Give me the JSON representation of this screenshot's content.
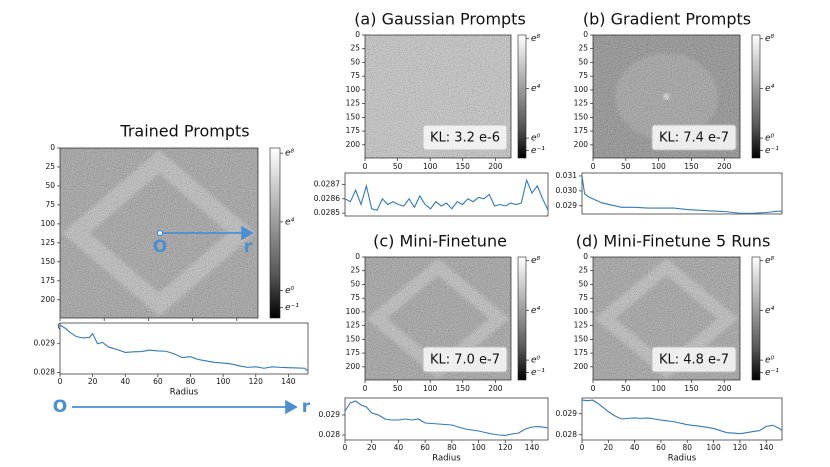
{
  "chart_data": [
    {
      "type": "image",
      "title": "Trained Prompts",
      "cmap": "gray",
      "xlim": [
        0,
        224
      ],
      "ylim": [
        0,
        224
      ],
      "yaxis_inverted": true,
      "xticks": [
        0,
        50,
        100,
        150,
        200
      ],
      "yticks": [
        0,
        25,
        50,
        75,
        100,
        125,
        150,
        175,
        200
      ],
      "colorbar": {
        "lim": [
          -1.6,
          8.3
        ],
        "ticks": [
          {
            "value": 8,
            "label": "e⁸"
          },
          {
            "value": 4,
            "label": "e⁴"
          },
          {
            "value": 0,
            "label": "e⁰"
          },
          {
            "value": -1,
            "label": "e⁻¹"
          }
        ]
      },
      "annotations": [
        "O",
        "r"
      ]
    },
    {
      "type": "line",
      "color": "#2f7ab9",
      "xlabel": "Radius",
      "xlim": [
        0,
        152
      ],
      "ylim": [
        0.02795,
        0.02972
      ],
      "xticks": [
        0,
        20,
        40,
        60,
        80,
        100,
        120,
        140
      ],
      "yticks": [
        0.028,
        0.029
      ],
      "x": [
        0,
        3,
        6,
        10,
        14,
        18,
        20,
        23,
        26,
        30,
        35,
        40,
        45,
        50,
        55,
        60,
        65,
        70,
        75,
        80,
        85,
        90,
        95,
        100,
        105,
        110,
        115,
        120,
        125,
        130,
        135,
        140,
        145,
        150,
        152
      ],
      "values": [
        0.02965,
        0.02955,
        0.0294,
        0.02925,
        0.0292,
        0.02922,
        0.02935,
        0.029,
        0.02905,
        0.02888,
        0.0288,
        0.0287,
        0.02872,
        0.02873,
        0.02878,
        0.02875,
        0.02874,
        0.02865,
        0.02852,
        0.02855,
        0.02845,
        0.0284,
        0.02835,
        0.02833,
        0.0283,
        0.02823,
        0.02818,
        0.0282,
        0.02815,
        0.0282,
        0.02818,
        0.02817,
        0.02816,
        0.02815,
        0.02805
      ],
      "annotations": [
        "O",
        "r"
      ]
    },
    {
      "type": "image",
      "title": "(a) Gaussian Prompts",
      "annotation": "KL: 3.2 e-6",
      "cmap": "gray",
      "xlim": [
        0,
        224
      ],
      "ylim": [
        0,
        224
      ],
      "yaxis_inverted": true,
      "xticks": [
        0,
        50,
        100,
        150,
        200
      ],
      "yticks": [
        0,
        25,
        50,
        75,
        100,
        125,
        150,
        175,
        200
      ],
      "colorbar": {
        "lim": [
          -1.6,
          8.3
        ],
        "ticks": [
          {
            "value": 8,
            "label": "e⁸"
          },
          {
            "value": 4,
            "label": "e⁴"
          },
          {
            "value": 0,
            "label": "e⁰"
          },
          {
            "value": -1,
            "label": "e⁻¹"
          }
        ]
      }
    },
    {
      "type": "line",
      "color": "#2f7ab9",
      "xlim": [
        0,
        152
      ],
      "ylim": [
        0.02848,
        0.02878
      ],
      "yticks": [
        0.0285,
        0.0286,
        0.0287
      ],
      "x": [
        0,
        4,
        8,
        12,
        16,
        20,
        24,
        28,
        32,
        36,
        40,
        44,
        48,
        52,
        56,
        60,
        64,
        68,
        72,
        76,
        80,
        84,
        88,
        92,
        96,
        100,
        104,
        108,
        112,
        116,
        120,
        124,
        128,
        132,
        136,
        140,
        144,
        148,
        152
      ],
      "values": [
        0.0286,
        0.02858,
        0.02866,
        0.02856,
        0.02869,
        0.02853,
        0.02852,
        0.0286,
        0.02856,
        0.02858,
        0.02856,
        0.02855,
        0.0286,
        0.02854,
        0.02862,
        0.02856,
        0.02853,
        0.02858,
        0.02855,
        0.02857,
        0.02853,
        0.02858,
        0.02856,
        0.0286,
        0.02858,
        0.02861,
        0.0286,
        0.02863,
        0.02855,
        0.02856,
        0.02855,
        0.02857,
        0.02856,
        0.02857,
        0.02873,
        0.02864,
        0.02869,
        0.0286,
        0.02852
      ]
    },
    {
      "type": "image",
      "title": "(b) Gradient Prompts",
      "annotation": "KL: 7.4 e-7",
      "cmap": "gray",
      "xlim": [
        0,
        224
      ],
      "ylim": [
        0,
        224
      ],
      "yaxis_inverted": true,
      "xticks": [
        0,
        50,
        100,
        150,
        200
      ],
      "yticks": [
        0,
        25,
        50,
        75,
        100,
        125,
        150,
        175,
        200
      ],
      "colorbar": {
        "lim": [
          -1.6,
          8.3
        ],
        "ticks": [
          {
            "value": 8,
            "label": "e⁸"
          },
          {
            "value": 4,
            "label": "e⁴"
          },
          {
            "value": 0,
            "label": "e⁰"
          },
          {
            "value": -1,
            "label": "e⁻¹"
          }
        ]
      }
    },
    {
      "type": "line",
      "color": "#2f7ab9",
      "xlim": [
        0,
        152
      ],
      "ylim": [
        0.02845,
        0.0312
      ],
      "yticks": [
        0.029,
        {
          "value": 0.03,
          "label": "0.030"
        },
        0.031
      ],
      "x": [
        0,
        2,
        5,
        10,
        15,
        20,
        25,
        30,
        40,
        50,
        60,
        70,
        80,
        90,
        100,
        110,
        120,
        130,
        140,
        145,
        150,
        152
      ],
      "values": [
        0.031,
        0.0298,
        0.0296,
        0.0294,
        0.0292,
        0.0291,
        0.029,
        0.0289,
        0.0289,
        0.02885,
        0.02885,
        0.02885,
        0.02875,
        0.0287,
        0.02865,
        0.0286,
        0.0285,
        0.0285,
        0.02855,
        0.0286,
        0.02865,
        0.0286
      ]
    },
    {
      "type": "image",
      "title": "(c) Mini-Finetune",
      "annotation": "KL: 7.0 e-7",
      "cmap": "gray",
      "xlim": [
        0,
        224
      ],
      "ylim": [
        0,
        224
      ],
      "yaxis_inverted": true,
      "xticks": [
        0,
        50,
        100,
        150,
        200
      ],
      "yticks": [
        0,
        25,
        50,
        75,
        100,
        125,
        150,
        175,
        200
      ],
      "colorbar": {
        "lim": [
          -1.6,
          8.3
        ],
        "ticks": [
          {
            "value": 8,
            "label": "e⁸"
          },
          {
            "value": 4,
            "label": "e⁴"
          },
          {
            "value": 0,
            "label": "e⁰"
          },
          {
            "value": -1,
            "label": "e⁻¹"
          }
        ]
      }
    },
    {
      "type": "line",
      "color": "#2f7ab9",
      "xlabel": "Radius",
      "xlim": [
        0,
        152
      ],
      "ylim": [
        0.02775,
        0.02985
      ],
      "xticks": [
        0,
        20,
        40,
        60,
        80,
        100,
        120,
        140
      ],
      "yticks": [
        0.028,
        0.029
      ],
      "x": [
        0,
        4,
        8,
        12,
        16,
        20,
        25,
        30,
        35,
        40,
        45,
        50,
        55,
        60,
        70,
        80,
        90,
        100,
        110,
        115,
        120,
        125,
        130,
        135,
        140,
        145,
        150,
        152
      ],
      "values": [
        0.0292,
        0.0296,
        0.0297,
        0.0295,
        0.0294,
        0.0291,
        0.029,
        0.0288,
        0.02875,
        0.02875,
        0.0288,
        0.02875,
        0.0288,
        0.0286,
        0.02855,
        0.0285,
        0.0283,
        0.0282,
        0.02805,
        0.028,
        0.02798,
        0.02805,
        0.0281,
        0.0283,
        0.0284,
        0.02842,
        0.02838,
        0.02835
      ]
    },
    {
      "type": "image",
      "title": "(d) Mini-Finetune 5 Runs",
      "annotation": "KL: 4.8 e-7",
      "cmap": "gray",
      "xlim": [
        0,
        224
      ],
      "ylim": [
        0,
        224
      ],
      "yaxis_inverted": true,
      "xticks": [
        0,
        50,
        100,
        150,
        200
      ],
      "yticks": [
        0,
        25,
        50,
        75,
        100,
        125,
        150,
        175,
        200
      ],
      "colorbar": {
        "lim": [
          -1.6,
          8.3
        ],
        "ticks": [
          {
            "value": 8,
            "label": "e⁸"
          },
          {
            "value": 4,
            "label": "e⁴"
          },
          {
            "value": 0,
            "label": "e⁰"
          },
          {
            "value": -1,
            "label": "e⁻¹"
          }
        ]
      }
    },
    {
      "type": "line",
      "color": "#2f7ab9",
      "xlabel": "Radius",
      "xlim": [
        0,
        152
      ],
      "ylim": [
        0.02775,
        0.02975
      ],
      "xticks": [
        0,
        20,
        40,
        60,
        80,
        100,
        120,
        140
      ],
      "yticks": [
        0.028,
        0.029
      ],
      "x": [
        0,
        4,
        8,
        12,
        16,
        20,
        25,
        30,
        35,
        40,
        45,
        50,
        55,
        60,
        70,
        80,
        90,
        100,
        110,
        115,
        120,
        125,
        130,
        135,
        140,
        145,
        150,
        152
      ],
      "values": [
        0.02965,
        0.02962,
        0.02965,
        0.0295,
        0.0293,
        0.0291,
        0.0289,
        0.02875,
        0.02878,
        0.0288,
        0.02878,
        0.0288,
        0.02875,
        0.0287,
        0.02862,
        0.02848,
        0.0284,
        0.0283,
        0.0281,
        0.02808,
        0.02805,
        0.0281,
        0.02815,
        0.0282,
        0.0284,
        0.02845,
        0.0283,
        0.0282
      ]
    }
  ]
}
